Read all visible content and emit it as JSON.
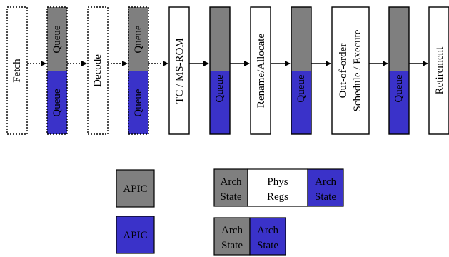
{
  "colors": {
    "gray": "#7f7f7f",
    "blue": "#3a32c9",
    "white": "#ffffff",
    "line": "#000000"
  },
  "stages": {
    "fetch": "Fetch",
    "decode": "Decode",
    "tc_msrom": "TC / MS-ROM",
    "rename": "Rename/Allocate",
    "ooo_line1": "Out-of-order",
    "ooo_line2": "Schedule / Execute",
    "retirement": "Retirement"
  },
  "queue_label": "Queue",
  "legend": {
    "apic_gray": "APIC",
    "apic_blue": "APIC",
    "arch_state_line1": "Arch",
    "arch_state_line2": "State",
    "phys_regs_line1": "Phys",
    "phys_regs_line2": "Regs"
  }
}
